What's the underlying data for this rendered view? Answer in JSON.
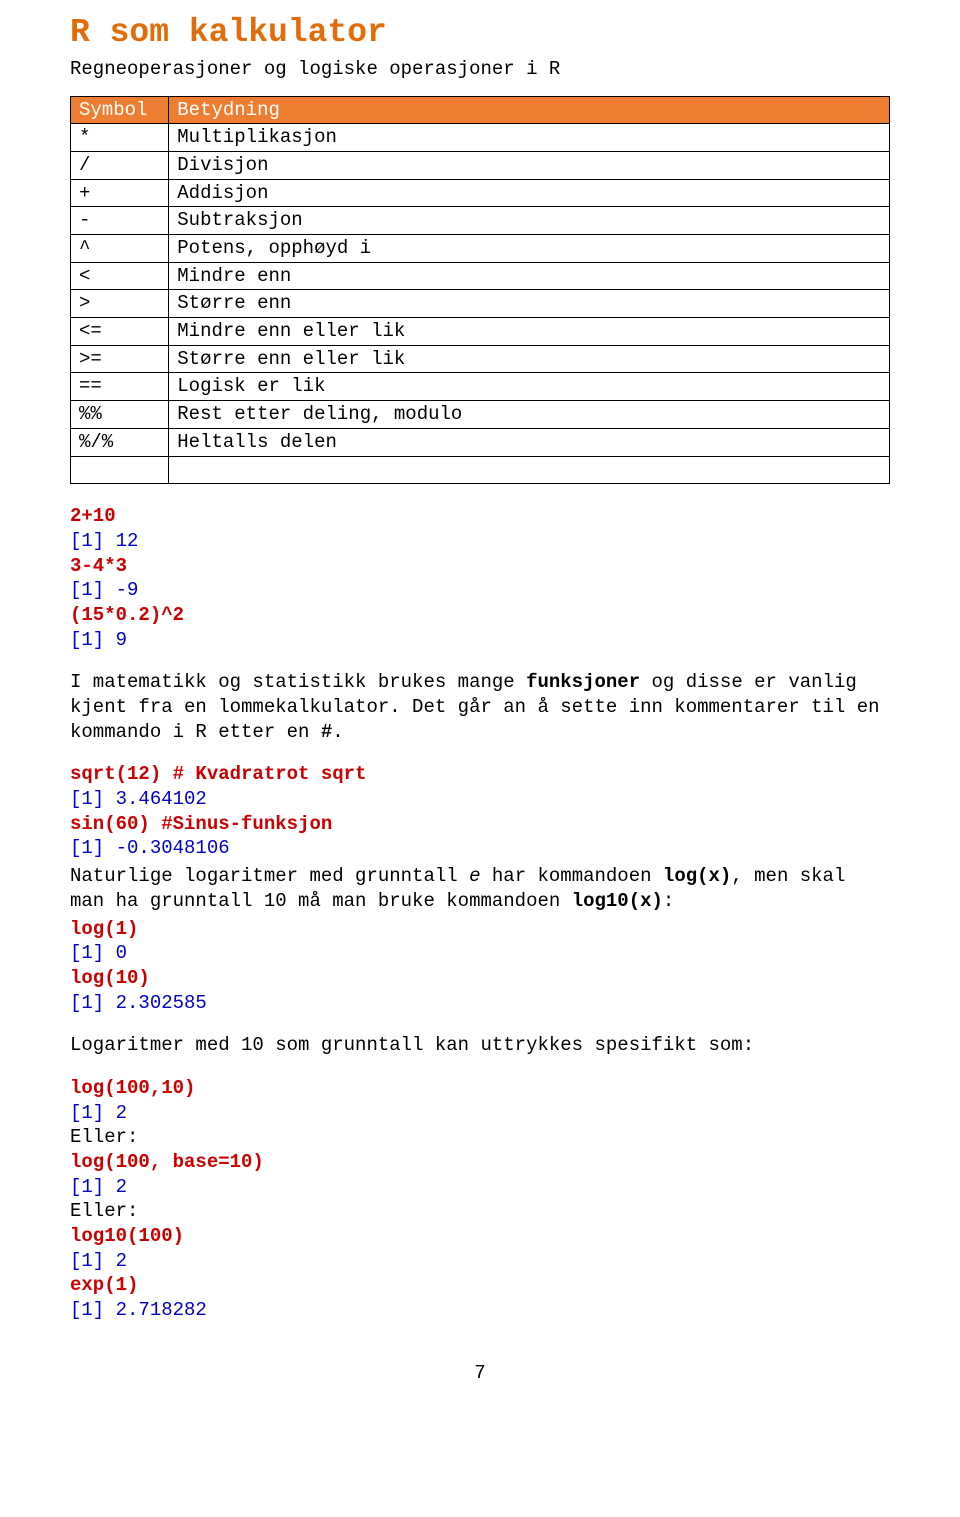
{
  "title": "R som kalkulator",
  "subtitle": "Regneoperasjoner og logiske operasjoner i R",
  "table": {
    "headers": [
      "Symbol",
      "Betydning"
    ],
    "rows": [
      [
        "*",
        "Multiplikasjon"
      ],
      [
        "/",
        "Divisjon"
      ],
      [
        "+",
        "Addisjon"
      ],
      [
        "-",
        "Subtraksjon"
      ],
      [
        "^",
        "Potens, opphøyd i"
      ],
      [
        "<",
        "Mindre enn"
      ],
      [
        ">",
        "Større enn"
      ],
      [
        "<=",
        "Mindre enn eller lik"
      ],
      [
        ">=",
        "Større enn eller lik"
      ],
      [
        "==",
        "Logisk er lik"
      ],
      [
        "%%",
        "Rest etter deling, modulo"
      ],
      [
        "%/%",
        "Heltalls delen"
      ],
      [
        "",
        ""
      ]
    ]
  },
  "s1": {
    "l1": "2+10",
    "l2": "[1] 12",
    "l3": "3-4*3",
    "l4": "[1] -9",
    "l5": "(15*0.2)^2",
    "l6": "[1] 9"
  },
  "p1a": "I matematikk og statistikk brukes mange ",
  "p1b": "funksjoner",
  "p1c": " og disse er vanlig kjent fra en lommekalkulator. Det går an å sette inn kommentarer til en kommando i R etter en ",
  "p1d": "#",
  "p1e": ".",
  "s2": {
    "l1": "sqrt(12) # Kvadratrot sqrt",
    "l2": "[1] 3.464102",
    "l3": "sin(60) #Sinus-funksjon",
    "l4": "[1] -0.3048106"
  },
  "p2a": "Naturlige logaritmer med grunntall ",
  "p2b": "e",
  "p2c": " har kommandoen ",
  "p2d": "log(x)",
  "p2e": ", men skal man ha grunntall 10 må man bruke kommandoen ",
  "p2f": "log10(x)",
  "p2g": ":",
  "s3": {
    "l1": "log(1)",
    "l2": "[1] 0",
    "l3": "log(10)",
    "l4": "[1] 2.302585"
  },
  "p3": "Logaritmer med 10 som grunntall kan uttrykkes spesifikt som:",
  "s4": {
    "l1": "log(100,10)",
    "l2": "[1] 2",
    "l3": "Eller:",
    "l4": "log(100, base=10)",
    "l5": "[1] 2",
    "l6": "Eller:",
    "l7": "log10(100)",
    "l8": "[1] 2",
    "l9": "exp(1)",
    "l10": "[1] 2.718282"
  },
  "page": "7"
}
